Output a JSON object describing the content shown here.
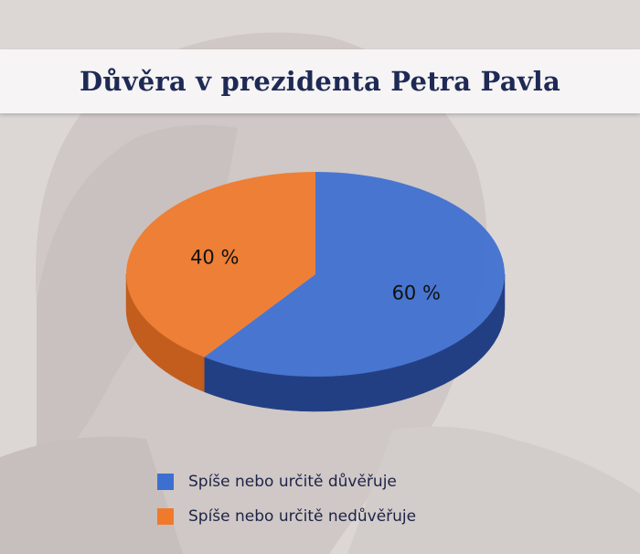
{
  "chart_data": {
    "type": "pie",
    "title": "Důvěra v prezidenta Petra Pavla",
    "slices": [
      {
        "label": "Spíše nebo určitě důvěřuje",
        "value": 60,
        "display": "60 %",
        "color": "#3d6fd1",
        "side_color": "#233f84"
      },
      {
        "label": "Spíše nebo určitě nedůvěřuje",
        "value": 40,
        "display": "40 %",
        "color": "#f07a2b",
        "side_color": "#c25d1e"
      }
    ],
    "legend_position": "bottom"
  }
}
